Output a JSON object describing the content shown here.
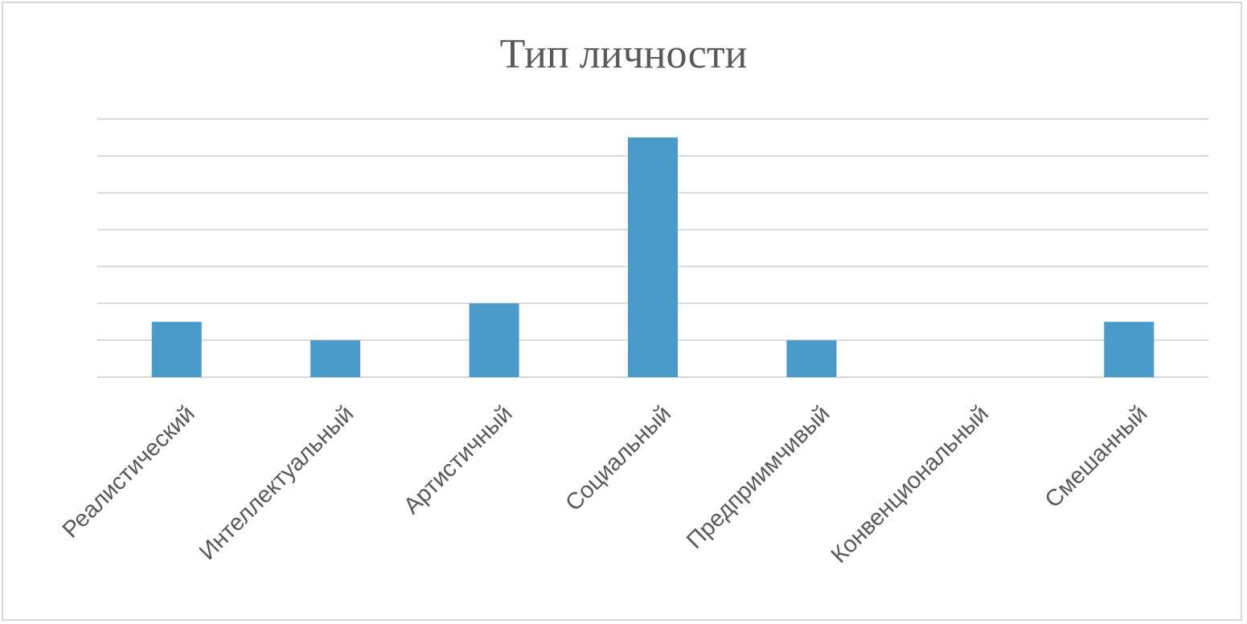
{
  "chart_data": {
    "type": "bar",
    "title": "Тип личности",
    "xlabel": "",
    "ylabel": "",
    "categories": [
      "Реалистический",
      "Интеллектуальный",
      "Артистичный",
      "Социальный",
      "Предприимчивый",
      "Конвенциональный",
      "Смешанный"
    ],
    "values": [
      1.5,
      1,
      2,
      6.5,
      1,
      0,
      1.5
    ],
    "ylim": [
      0,
      7
    ],
    "grid": true,
    "y_tick_labels_shown": false,
    "legend": "none",
    "bar_color": "#4a9bc9",
    "grid_color": "#d9d9d9",
    "text_color": "#595959"
  }
}
